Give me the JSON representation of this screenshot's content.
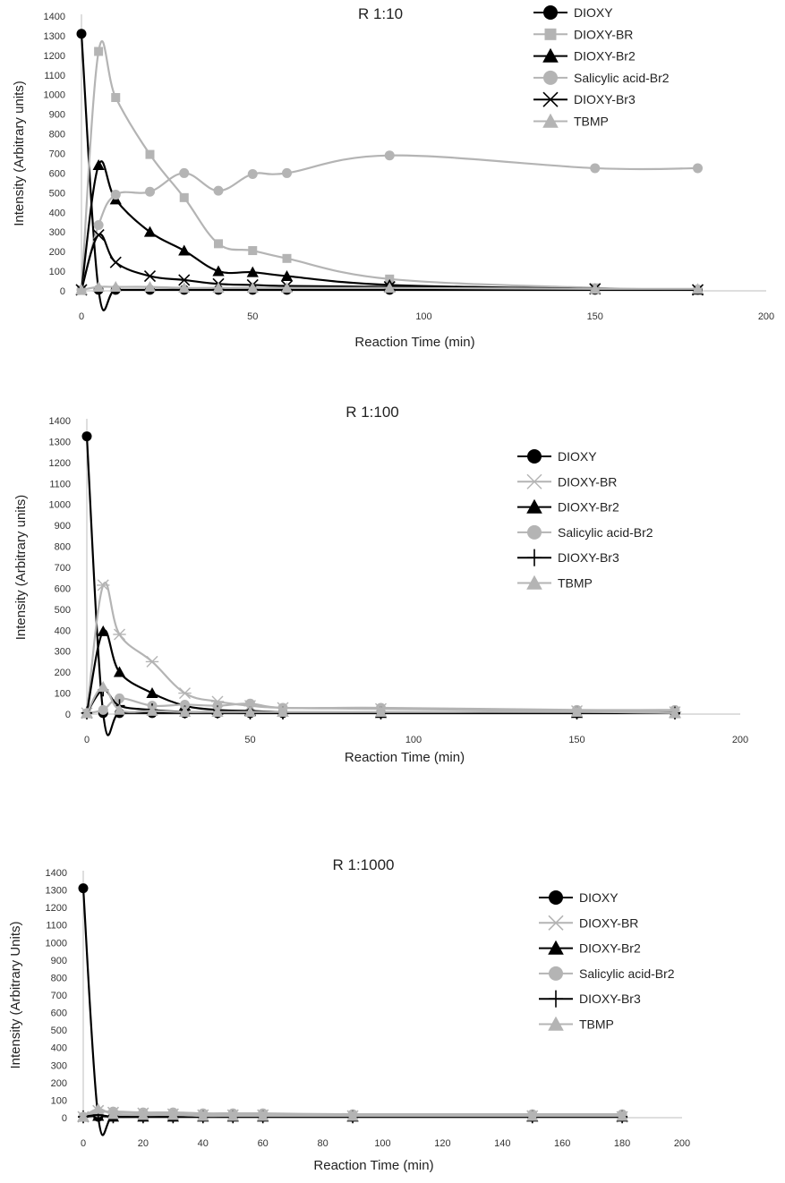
{
  "chart_data": [
    {
      "type": "line",
      "title": "R 1:10",
      "xlabel": "Reaction Time (min)",
      "ylabel": "Intensity (Arbitrary units)",
      "xlim": [
        0,
        200
      ],
      "ylim": [
        0,
        1400
      ],
      "x_ticks": [
        "0",
        "50",
        "100",
        "150",
        "200"
      ],
      "y_ticks": [
        "0",
        "100",
        "200",
        "300",
        "400",
        "500",
        "600",
        "700",
        "800",
        "900",
        "1000",
        "1100",
        "1200",
        "1300",
        "1400"
      ],
      "legend_position": "top-right",
      "series": [
        {
          "name": "DIOXY",
          "color": "#000000",
          "marker": "circle",
          "x": [
            0,
            5,
            10,
            20,
            30,
            40,
            50,
            60,
            90,
            150,
            180
          ],
          "y": [
            1310,
            5,
            5,
            5,
            5,
            5,
            5,
            5,
            5,
            5,
            5
          ]
        },
        {
          "name": "DIOXY-BR",
          "color": "#b4b4b4",
          "marker": "square",
          "x": [
            0,
            5,
            10,
            20,
            30,
            40,
            50,
            60,
            90,
            150,
            180
          ],
          "y": [
            5,
            1220,
            985,
            695,
            475,
            240,
            205,
            165,
            60,
            15,
            5
          ]
        },
        {
          "name": "DIOXY-Br2",
          "color": "#000000",
          "marker": "triangle",
          "x": [
            0,
            5,
            10,
            20,
            30,
            40,
            50,
            60,
            90,
            150,
            180
          ],
          "y": [
            5,
            640,
            465,
            300,
            205,
            100,
            95,
            75,
            30,
            10,
            5
          ]
        },
        {
          "name": "Salicylic acid-Br2",
          "color": "#b4b4b4",
          "marker": "circle",
          "x": [
            0,
            5,
            10,
            20,
            30,
            40,
            50,
            60,
            90,
            150,
            180
          ],
          "y": [
            5,
            335,
            490,
            505,
            600,
            510,
            595,
            600,
            690,
            625,
            625
          ]
        },
        {
          "name": "DIOXY-Br3",
          "color": "#000000",
          "marker": "x",
          "x": [
            0,
            5,
            10,
            20,
            30,
            40,
            50,
            60,
            90,
            150,
            180
          ],
          "y": [
            5,
            285,
            145,
            75,
            55,
            35,
            30,
            25,
            20,
            10,
            5
          ]
        },
        {
          "name": "TBMP",
          "color": "#b4b4b4",
          "marker": "triangle",
          "x": [
            0,
            5,
            10,
            20,
            30,
            40,
            50,
            60,
            90,
            150,
            180
          ],
          "y": [
            5,
            20,
            20,
            20,
            15,
            15,
            15,
            15,
            15,
            10,
            10
          ]
        }
      ]
    },
    {
      "type": "line",
      "title": "R 1:100",
      "xlabel": "Reaction Time (min)",
      "ylabel": "Intensity (Arbitrary units)",
      "xlim": [
        0,
        200
      ],
      "ylim": [
        0,
        1400
      ],
      "x_ticks": [
        "0",
        "50",
        "100",
        "150",
        "200"
      ],
      "y_ticks": [
        "0",
        "100",
        "200",
        "300",
        "400",
        "500",
        "600",
        "700",
        "800",
        "900",
        "1000",
        "1100",
        "1200",
        "1300",
        "1400"
      ],
      "legend_position": "right",
      "series": [
        {
          "name": "DIOXY",
          "color": "#000000",
          "marker": "circle",
          "x": [
            0,
            5,
            10,
            20,
            30,
            40,
            50,
            60,
            90,
            150,
            180
          ],
          "y": [
            1325,
            5,
            5,
            5,
            5,
            5,
            5,
            5,
            5,
            5,
            5
          ]
        },
        {
          "name": "DIOXY-BR",
          "color": "#b4b4b4",
          "marker": "star",
          "x": [
            0,
            5,
            10,
            20,
            30,
            40,
            50,
            60,
            90,
            150,
            180
          ],
          "y": [
            5,
            615,
            380,
            250,
            100,
            60,
            40,
            30,
            25,
            15,
            10
          ]
        },
        {
          "name": "DIOXY-Br2",
          "color": "#000000",
          "marker": "triangle",
          "x": [
            0,
            5,
            10,
            20,
            30,
            40,
            50,
            60,
            90,
            150,
            180
          ],
          "y": [
            5,
            395,
            200,
            100,
            40,
            20,
            15,
            10,
            5,
            5,
            5
          ]
        },
        {
          "name": "Salicylic acid-Br2",
          "color": "#b4b4b4",
          "marker": "circle",
          "x": [
            0,
            5,
            10,
            20,
            30,
            40,
            50,
            60,
            90,
            150,
            180
          ],
          "y": [
            5,
            20,
            75,
            40,
            45,
            40,
            50,
            30,
            30,
            20,
            20
          ]
        },
        {
          "name": "DIOXY-Br3",
          "color": "#000000",
          "marker": "plus",
          "x": [
            0,
            5,
            10,
            20,
            30,
            40,
            50,
            60,
            90,
            150,
            180
          ],
          "y": [
            5,
            115,
            40,
            20,
            10,
            10,
            5,
            5,
            5,
            5,
            5
          ]
        },
        {
          "name": "TBMP",
          "color": "#b4b4b4",
          "marker": "triangle",
          "x": [
            0,
            5,
            10,
            20,
            30,
            40,
            50,
            60,
            90,
            150,
            180
          ],
          "y": [
            5,
            130,
            20,
            15,
            10,
            10,
            10,
            10,
            10,
            10,
            5
          ]
        }
      ]
    },
    {
      "type": "line",
      "title": "R 1:1000",
      "xlabel": "Reaction Time (min)",
      "ylabel": "Intensity (Arbitrary Units)",
      "xlim": [
        0,
        200
      ],
      "ylim": [
        0,
        1400
      ],
      "x_ticks": [
        "0",
        "20",
        "40",
        "60",
        "80",
        "100",
        "120",
        "140",
        "160",
        "180",
        "200"
      ],
      "y_ticks": [
        "0",
        "100",
        "200",
        "300",
        "400",
        "500",
        "600",
        "700",
        "800",
        "900",
        "1000",
        "1100",
        "1200",
        "1300",
        "1400"
      ],
      "legend_position": "right",
      "series": [
        {
          "name": "DIOXY",
          "color": "#000000",
          "marker": "circle",
          "x": [
            0,
            5,
            10,
            20,
            30,
            40,
            50,
            60,
            90,
            150,
            180
          ],
          "y": [
            1310,
            5,
            5,
            5,
            5,
            5,
            5,
            5,
            5,
            5,
            5
          ]
        },
        {
          "name": "DIOXY-BR",
          "color": "#b4b4b4",
          "marker": "x",
          "x": [
            0,
            5,
            10,
            20,
            30,
            40,
            50,
            60,
            90,
            150,
            180
          ],
          "y": [
            5,
            40,
            30,
            25,
            20,
            15,
            15,
            15,
            10,
            10,
            5
          ]
        },
        {
          "name": "DIOXY-Br2",
          "color": "#000000",
          "marker": "triangle",
          "x": [
            0,
            5,
            10,
            20,
            30,
            40,
            50,
            60,
            90,
            150,
            180
          ],
          "y": [
            5,
            10,
            5,
            5,
            5,
            5,
            5,
            5,
            5,
            5,
            5
          ]
        },
        {
          "name": "Salicylic acid-Br2",
          "color": "#b4b4b4",
          "marker": "circle",
          "x": [
            0,
            5,
            10,
            20,
            30,
            40,
            50,
            60,
            90,
            150,
            180
          ],
          "y": [
            5,
            30,
            35,
            30,
            30,
            25,
            25,
            25,
            20,
            20,
            20
          ]
        },
        {
          "name": "DIOXY-Br3",
          "color": "#000000",
          "marker": "plus",
          "x": [
            0,
            5,
            10,
            20,
            30,
            40,
            50,
            60,
            90,
            150,
            180
          ],
          "y": [
            5,
            15,
            5,
            5,
            5,
            5,
            5,
            5,
            5,
            5,
            5
          ]
        },
        {
          "name": "TBMP",
          "color": "#b4b4b4",
          "marker": "triangle",
          "x": [
            0,
            5,
            10,
            20,
            30,
            40,
            50,
            60,
            90,
            150,
            180
          ],
          "y": [
            5,
            50,
            20,
            15,
            15,
            10,
            10,
            10,
            10,
            10,
            10
          ]
        }
      ]
    }
  ]
}
